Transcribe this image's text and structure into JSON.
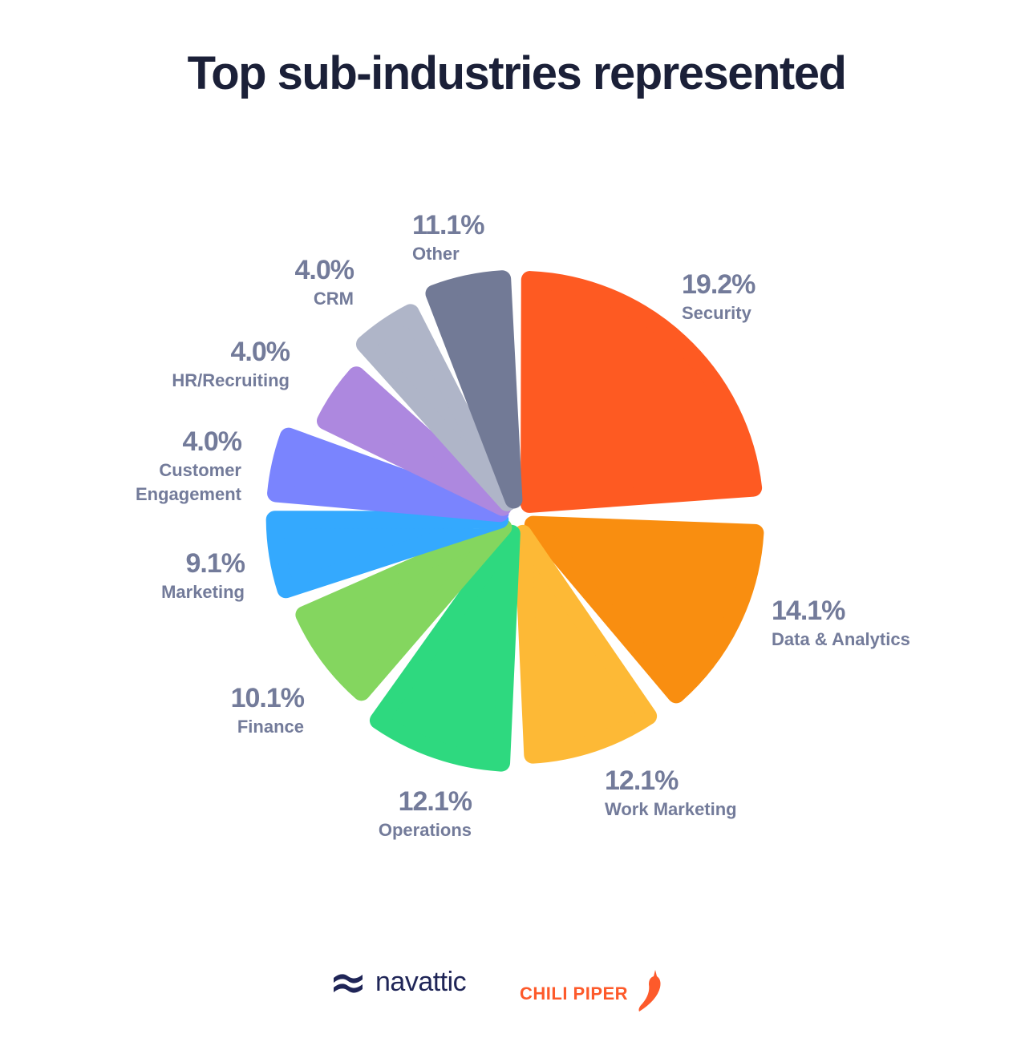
{
  "title": "Top sub-industries represented",
  "chart_data": {
    "type": "pie",
    "title": "Top sub-industries represented",
    "center": [
      645,
      645
    ],
    "slices": [
      {
        "label": "Security",
        "value": 19.2,
        "display": "19.2%",
        "color": "#fe5a22",
        "start": 1,
        "end": 85,
        "r": 305
      },
      {
        "label": "Data & Analytics",
        "value": 14.1,
        "display": "14.1%",
        "color": "#f98e10",
        "start": 92,
        "end": 140,
        "r": 305
      },
      {
        "label": "Work Marketing",
        "value": 12.1,
        "display": "12.1%",
        "color": "#fdb936",
        "start": 145,
        "end": 178,
        "r": 305
      },
      {
        "label": "Operations",
        "value": 12.1,
        "display": "12.1%",
        "color": "#2ed97f",
        "start": 182,
        "end": 216,
        "r": 315
      },
      {
        "label": "Finance",
        "value": 10.1,
        "display": "10.1%",
        "color": "#84d65f",
        "start": 220,
        "end": 247,
        "r": 300
      },
      {
        "label": "Marketing",
        "value": 9.1,
        "display": "9.1%",
        "color": "#34a9fe",
        "start": 251,
        "end": 271,
        "r": 310
      },
      {
        "label": "Customer Engagement",
        "value": 4.0,
        "display": "4.0%",
        "color": "#7a84fe",
        "start": 274,
        "end": 291,
        "r": 310
      },
      {
        "label": "HR/Recruiting",
        "value": 4.0,
        "display": "4.0%",
        "color": "#ad88df",
        "start": 295,
        "end": 313,
        "r": 275
      },
      {
        "label": "CRM",
        "value": 4.0,
        "display": "4.0%",
        "color": "#afb5c8",
        "start": 317,
        "end": 334,
        "r": 295
      },
      {
        "label": "Other",
        "value": 11.1,
        "display": "11.1%",
        "color": "#727a96",
        "start": 338,
        "end": 358,
        "r": 305
      }
    ]
  },
  "labels": [
    {
      "pct": "19.2%",
      "name": "Security"
    },
    {
      "pct": "14.1%",
      "name": "Data & Analytics"
    },
    {
      "pct": "12.1%",
      "name": "Work Marketing"
    },
    {
      "pct": "12.1%",
      "name": "Operations"
    },
    {
      "pct": "10.1%",
      "name": "Finance"
    },
    {
      "pct": "9.1%",
      "name": "Marketing"
    },
    {
      "pct": "4.0%",
      "name": "Customer Engagement"
    },
    {
      "pct": "4.0%",
      "name": "HR/Recruiting"
    },
    {
      "pct": "4.0%",
      "name": "CRM"
    },
    {
      "pct": "11.1%",
      "name": "Other"
    }
  ],
  "logos": {
    "navattic": "navattic",
    "chili_piper": "CHILI PIPER"
  }
}
